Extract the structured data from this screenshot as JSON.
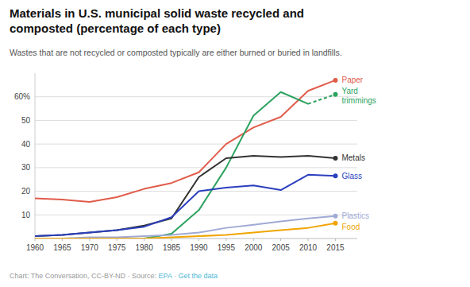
{
  "chart_data": {
    "type": "line",
    "title": "Materials in U.S. municipal solid waste recycled and\ncomposted (percentage of each type)",
    "subtitle": "Wastes that are not recycled or composted typically are either burned or buried in landfills.",
    "x": [
      1960,
      1965,
      1970,
      1975,
      1980,
      1985,
      1990,
      1995,
      2000,
      2005,
      2010,
      2015
    ],
    "series": [
      {
        "name": "Paper",
        "color": "#e05c4b",
        "values": [
          17.0,
          16.5,
          15.5,
          17.5,
          21.0,
          23.5,
          28.0,
          40.0,
          47.0,
          51.5,
          62.5,
          67.0
        ]
      },
      {
        "name": "Yard\ntrimmings",
        "color": "#2ca25f",
        "line_style": "dashed-end",
        "values": [
          0.0,
          0.0,
          0.0,
          0.0,
          0.0,
          2.0,
          12.0,
          30.0,
          52.0,
          62.0,
          57.0,
          61.0
        ]
      },
      {
        "name": "Metals",
        "color": "#333333",
        "values": [
          1.0,
          1.5,
          2.5,
          3.5,
          5.5,
          8.5,
          26.0,
          34.0,
          35.0,
          34.5,
          35.0,
          34.0
        ]
      },
      {
        "name": "Glass",
        "color": "#2b3fbe",
        "values": [
          1.0,
          1.5,
          2.5,
          3.5,
          5.0,
          9.0,
          20.0,
          21.5,
          22.5,
          20.5,
          27.0,
          26.5
        ]
      },
      {
        "name": "Plastics",
        "color": "#a0aad4",
        "values": [
          0.0,
          0.0,
          0.5,
          0.5,
          1.0,
          1.5,
          2.5,
          4.5,
          5.8,
          7.2,
          8.5,
          9.5
        ]
      },
      {
        "name": "Food",
        "color": "#f0a500",
        "values": [
          0.0,
          0.0,
          0.0,
          0.0,
          0.0,
          0.5,
          1.0,
          1.5,
          2.5,
          3.5,
          4.5,
          6.5
        ]
      }
    ],
    "marker": "circle",
    "xlim": [
      1960,
      2019
    ],
    "ylim": [
      0,
      70
    ],
    "xticks": [
      1960,
      1965,
      1970,
      1975,
      1980,
      1985,
      1990,
      1995,
      2000,
      2005,
      2010,
      2015
    ],
    "yticks": [
      10,
      20,
      30,
      40,
      50,
      {
        "value": 60,
        "label": "60%"
      }
    ],
    "grid": true,
    "annotations": [
      {
        "text": "Chart: The Conversation, CC-BY-ND · Source: ",
        "color": "#999999"
      },
      {
        "text": "EPA",
        "color": "#4db8d4"
      },
      {
        "text": " · ",
        "color": "#999999"
      },
      {
        "text": "Get the data",
        "color": "#4db8d4"
      }
    ]
  }
}
